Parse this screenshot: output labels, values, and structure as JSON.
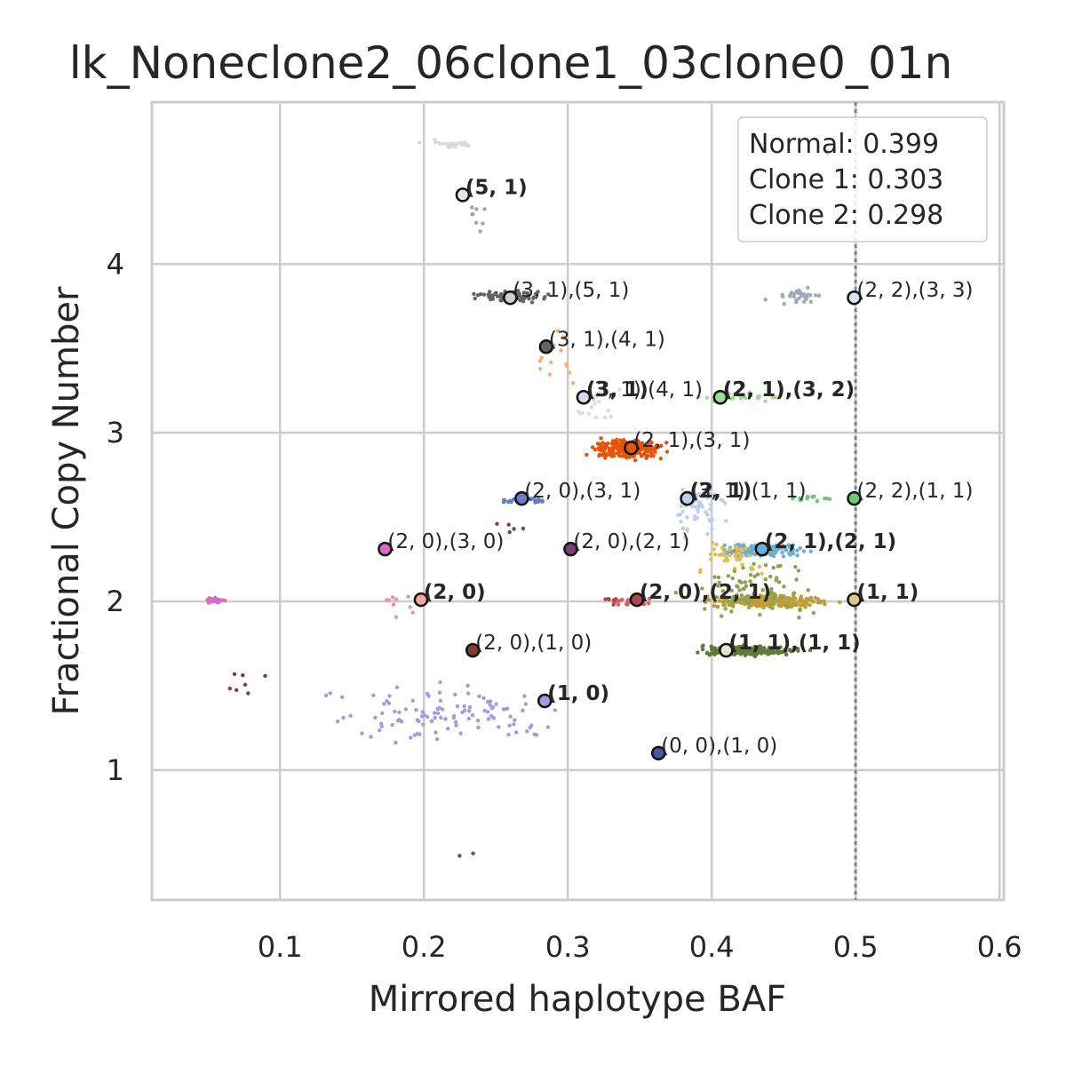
{
  "chart_data": {
    "type": "scatter",
    "title": "lk_Noneclone2_06clone1_03clone0_01n",
    "xlabel": "Mirrored haplotype BAF",
    "ylabel": "Fractional Copy Number",
    "xlim": [
      0.011,
      0.603
    ],
    "ylim": [
      0.23,
      4.96
    ],
    "xticks": [
      0.1,
      0.2,
      0.3,
      0.4,
      0.5,
      0.6
    ],
    "xtick_labels": [
      "0.1",
      "0.2",
      "0.3",
      "0.4",
      "0.5",
      "0.6"
    ],
    "yticks": [
      1,
      2,
      3,
      4
    ],
    "ytick_labels": [
      "1",
      "2",
      "3",
      "4"
    ],
    "grid": true,
    "reference_line": {
      "x": 0.5,
      "style": "dotted",
      "color": "#808080"
    },
    "legend": {
      "placement": "top-right",
      "entries": [
        "Normal: 0.399",
        "Clone 1: 0.303",
        "Clone 2: 0.298"
      ]
    },
    "clusters": [
      {
        "color": "#d9d9d9",
        "x": [
          0.19,
          0.25
        ],
        "y": [
          4.67,
          4.75
        ],
        "n": 25
      },
      {
        "color": "#a5a5a5",
        "x": [
          0.22,
          0.25
        ],
        "y": [
          4.08,
          4.45
        ],
        "n": 8
      },
      {
        "color": "#636363",
        "x": [
          0.22,
          0.3
        ],
        "y": [
          3.76,
          3.86
        ],
        "n": 70
      },
      {
        "color": "#9eaab9",
        "x": [
          0.43,
          0.49
        ],
        "y": [
          3.74,
          3.88
        ],
        "n": 30
      },
      {
        "color": "#fdae6b",
        "x": [
          0.26,
          0.32
        ],
        "y": [
          3.2,
          3.7
        ],
        "n": 14
      },
      {
        "color": "#dadaeb",
        "x": [
          0.29,
          0.36
        ],
        "y": [
          3.0,
          3.3
        ],
        "n": 20
      },
      {
        "color": "#a1d99b",
        "x": [
          0.38,
          0.46
        ],
        "y": [
          3.16,
          3.26
        ],
        "n": 28
      },
      {
        "color": "#e6550d",
        "x": [
          0.3,
          0.38
        ],
        "y": [
          2.81,
          2.99
        ],
        "n": 220
      },
      {
        "color": "#bcd0e8",
        "x": [
          0.36,
          0.42
        ],
        "y": [
          2.3,
          2.8
        ],
        "n": 60
      },
      {
        "color": "#6b7ec4",
        "x": [
          0.25,
          0.29
        ],
        "y": [
          2.57,
          2.63
        ],
        "n": 30
      },
      {
        "color": "#74c476",
        "x": [
          0.44,
          0.5
        ],
        "y": [
          2.58,
          2.64
        ],
        "n": 14
      },
      {
        "color": "#6baed6",
        "x": [
          0.39,
          0.48
        ],
        "y": [
          2.23,
          2.37
        ],
        "n": 150
      },
      {
        "color": "#e7ba52",
        "x": [
          0.37,
          0.46
        ],
        "y": [
          2.1,
          2.45
        ],
        "n": 45
      },
      {
        "color": "#bd9e39",
        "x": [
          0.38,
          0.5
        ],
        "y": [
          1.94,
          2.06
        ],
        "n": 300
      },
      {
        "color": "#8ca252",
        "x": [
          0.36,
          0.5
        ],
        "y": [
          1.8,
          2.35
        ],
        "n": 80
      },
      {
        "color": "#637939",
        "x": [
          0.37,
          0.48
        ],
        "y": [
          1.66,
          1.76
        ],
        "n": 220
      },
      {
        "color": "#d6616b",
        "x": [
          0.32,
          0.37
        ],
        "y": [
          1.96,
          2.04
        ],
        "n": 22
      },
      {
        "color": "#ad494a",
        "x": [
          0.32,
          0.34
        ],
        "y": [
          1.95,
          2.05
        ],
        "n": 6
      },
      {
        "color": "#e7969c",
        "x": [
          0.15,
          0.21
        ],
        "y": [
          1.8,
          2.25
        ],
        "n": 10
      },
      {
        "color": "#d66cc4",
        "x": [
          0.04,
          0.07
        ],
        "y": [
          1.98,
          2.03
        ],
        "n": 30
      },
      {
        "color": "#7b4173",
        "x": [
          0.22,
          0.3
        ],
        "y": [
          2.3,
          2.6
        ],
        "n": 5
      },
      {
        "color": "#843c39",
        "x": [
          0.05,
          0.1
        ],
        "y": [
          1.38,
          1.65
        ],
        "n": 7
      },
      {
        "color": "#9c9ede",
        "x": [
          0.08,
          0.35
        ],
        "y": [
          1.06,
          1.62
        ],
        "n": 110
      },
      {
        "color": "#5254a3",
        "x": [
          0.2,
          0.26
        ],
        "y": [
          0.44,
          0.55
        ],
        "n": 2
      }
    ],
    "centroids": [
      {
        "x": 0.227,
        "y": 4.41,
        "label": "(5, 1)",
        "bold": true,
        "color": "#e6e6e6"
      },
      {
        "x": 0.26,
        "y": 3.8,
        "label": "(3, 1),(5, 1)",
        "bold": false,
        "color": "#cfcfcf"
      },
      {
        "x": 0.499,
        "y": 3.8,
        "label": "(2, 2),(3, 3)",
        "bold": false,
        "color": "#dde3ea"
      },
      {
        "x": 0.285,
        "y": 3.51,
        "label": "(3, 1),(4, 1)",
        "bold": false,
        "color": "#636363"
      },
      {
        "x": 0.311,
        "y": 3.21,
        "label": "(3, 1)",
        "bold": true,
        "color": "#dadaeb"
      },
      {
        "x": 0.311,
        "y": 3.21,
        "label": "(3, 1),(4, 1)",
        "bold": false,
        "color": "#dadaeb"
      },
      {
        "x": 0.406,
        "y": 3.21,
        "label": "(2, 1)",
        "bold": true,
        "color": "#a1d99b"
      },
      {
        "x": 0.406,
        "y": 3.21,
        "label": "(2, 1),(3, 2)",
        "bold": true,
        "color": "#a1d99b"
      },
      {
        "x": 0.344,
        "y": 2.91,
        "label": "(2, 1),(3, 1)",
        "bold": false,
        "color": "#e6550d"
      },
      {
        "x": 0.268,
        "y": 2.61,
        "label": "(2, 0),(3, 1)",
        "bold": false,
        "color": "#6b7ec4"
      },
      {
        "x": 0.383,
        "y": 2.61,
        "label": "(2, 1)",
        "bold": true,
        "color": "#bcd0e8"
      },
      {
        "x": 0.383,
        "y": 2.61,
        "label": "(3, 1),(1, 1)",
        "bold": false,
        "color": "#bcd0e8"
      },
      {
        "x": 0.499,
        "y": 2.61,
        "label": "(2, 2),(1, 1)",
        "bold": false,
        "color": "#74c476"
      },
      {
        "x": 0.173,
        "y": 2.31,
        "label": "(2, 0),(3, 0)",
        "bold": false,
        "color": "#d66cc4"
      },
      {
        "x": 0.302,
        "y": 2.31,
        "label": "(2, 0),(2, 1)",
        "bold": false,
        "color": "#7b4173"
      },
      {
        "x": 0.435,
        "y": 2.31,
        "label": "(2, 1),(2, 1)",
        "bold": true,
        "color": "#6baed6"
      },
      {
        "x": 0.198,
        "y": 2.01,
        "label": "(2, 0)",
        "bold": true,
        "color": "#f4a6a6"
      },
      {
        "x": 0.348,
        "y": 2.01,
        "label": "(2, 0),(2, 1)",
        "bold": true,
        "color": "#ad494a"
      },
      {
        "x": 0.499,
        "y": 2.01,
        "label": "(1, 1)",
        "bold": true,
        "color": "#d8c98a"
      },
      {
        "x": 0.234,
        "y": 1.71,
        "label": "(2, 0),(1, 0)",
        "bold": false,
        "color": "#843c39"
      },
      {
        "x": 0.41,
        "y": 1.71,
        "label": "(1, 1),(1, 1)",
        "bold": true,
        "color": "#dfe8c9"
      },
      {
        "x": 0.284,
        "y": 1.41,
        "label": "(1, 0)",
        "bold": true,
        "color": "#9c9ede"
      },
      {
        "x": 0.363,
        "y": 1.1,
        "label": "(0, 0),(1, 0)",
        "bold": false,
        "color": "#5254a3"
      }
    ]
  }
}
